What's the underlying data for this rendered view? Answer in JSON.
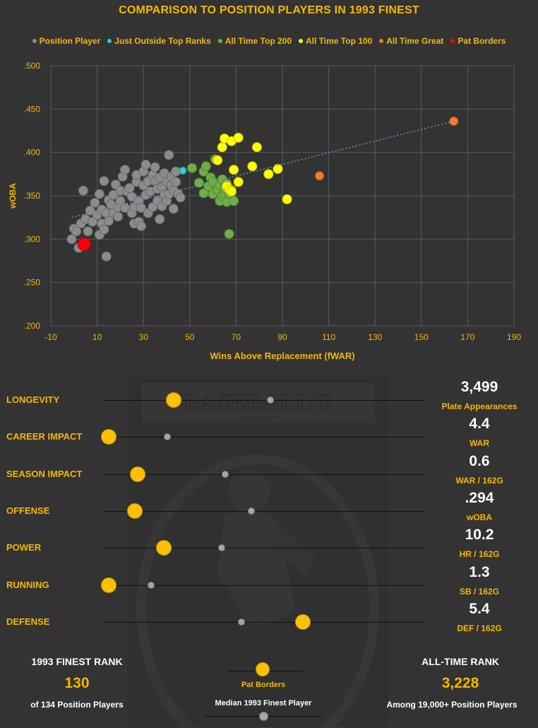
{
  "title": "COMPARISON TO POSITION PLAYERS IN 1993 FINEST",
  "colors": {
    "background": "#333333",
    "accent": "#f5b700",
    "position_player": "#8c8c8c",
    "just_outside": "#33cccc",
    "top200": "#70ad47",
    "top100": "#ffff00",
    "all_time_great": "#ed7d31",
    "pat_borders": "#ff0000"
  },
  "legend": [
    {
      "label": "Position Player",
      "color": "#8c8c8c"
    },
    {
      "label": "Just Outside Top Ranks",
      "color": "#33cccc"
    },
    {
      "label": "All Time Top 200",
      "color": "#70ad47"
    },
    {
      "label": "All Time Top 100",
      "color": "#ffff00"
    },
    {
      "label": "All Time Great",
      "color": "#ed7d31"
    },
    {
      "label": "Pat Borders",
      "color": "#ff0000"
    }
  ],
  "chart_data": {
    "type": "scatter",
    "xlabel": "Wins Above Replacement (fWAR)",
    "ylabel": "wOBA",
    "xlim": [
      -10,
      190
    ],
    "ylim": [
      0.2,
      0.5
    ],
    "x_ticks": [
      -10,
      10,
      30,
      50,
      70,
      90,
      110,
      130,
      150,
      170,
      190
    ],
    "y_ticks": [
      ".200",
      ".250",
      ".300",
      ".350",
      ".400",
      ".450",
      ".500"
    ],
    "grid": true,
    "trendline": {
      "x": [
        -1,
        164
      ],
      "y": [
        0.325,
        0.436
      ]
    },
    "series": [
      {
        "name": "Position Player",
        "color": "#8c8c8c",
        "points": [
          [
            -1,
            0.3
          ],
          [
            0,
            0.312
          ],
          [
            1,
            0.309
          ],
          [
            2,
            0.29
          ],
          [
            3,
            0.318
          ],
          [
            4,
            0.356
          ],
          [
            5,
            0.323
          ],
          [
            6,
            0.309
          ],
          [
            7,
            0.333
          ],
          [
            8,
            0.32
          ],
          [
            9,
            0.342
          ],
          [
            10,
            0.328
          ],
          [
            11,
            0.305
          ],
          [
            11,
            0.352
          ],
          [
            12,
            0.318
          ],
          [
            12,
            0.334
          ],
          [
            13,
            0.311
          ],
          [
            13,
            0.367
          ],
          [
            14,
            0.33
          ],
          [
            14,
            0.28
          ],
          [
            15,
            0.345
          ],
          [
            15,
            0.321
          ],
          [
            16,
            0.34
          ],
          [
            17,
            0.351
          ],
          [
            17,
            0.33
          ],
          [
            18,
            0.363
          ],
          [
            19,
            0.337
          ],
          [
            19,
            0.326
          ],
          [
            20,
            0.344
          ],
          [
            20,
            0.356
          ],
          [
            21,
            0.372
          ],
          [
            22,
            0.336
          ],
          [
            22,
            0.38
          ],
          [
            23,
            0.355
          ],
          [
            24,
            0.359
          ],
          [
            25,
            0.33
          ],
          [
            25,
            0.349
          ],
          [
            26,
            0.318
          ],
          [
            26,
            0.337
          ],
          [
            27,
            0.366
          ],
          [
            27,
            0.374
          ],
          [
            28,
            0.32
          ],
          [
            28,
            0.344
          ],
          [
            29,
            0.315
          ],
          [
            29,
            0.336
          ],
          [
            30,
            0.362
          ],
          [
            30,
            0.378
          ],
          [
            31,
            0.386
          ],
          [
            31,
            0.351
          ],
          [
            32,
            0.33
          ],
          [
            32,
            0.367
          ],
          [
            33,
            0.355
          ],
          [
            34,
            0.337
          ],
          [
            34,
            0.374
          ],
          [
            35,
            0.367
          ],
          [
            35,
            0.383
          ],
          [
            36,
            0.344
          ],
          [
            36,
            0.358
          ],
          [
            37,
            0.323
          ],
          [
            37,
            0.371
          ],
          [
            38,
            0.338
          ],
          [
            38,
            0.36
          ],
          [
            39,
            0.351
          ],
          [
            39,
            0.376
          ],
          [
            40,
            0.344
          ],
          [
            40,
            0.366
          ],
          [
            41,
            0.397
          ],
          [
            41,
            0.352
          ],
          [
            42,
            0.362
          ],
          [
            42,
            0.372
          ],
          [
            43,
            0.335
          ],
          [
            43,
            0.356
          ],
          [
            44,
            0.366
          ],
          [
            44,
            0.378
          ],
          [
            45,
            0.352
          ],
          [
            46,
            0.348
          ]
        ]
      },
      {
        "name": "Just Outside Top Ranks",
        "color": "#33cccc",
        "points": [
          [
            47,
            0.379
          ]
        ]
      },
      {
        "name": "All Time Top 200",
        "color": "#70ad47",
        "points": [
          [
            51,
            0.382
          ],
          [
            54,
            0.365
          ],
          [
            56,
            0.378
          ],
          [
            56,
            0.353
          ],
          [
            57,
            0.384
          ],
          [
            58,
            0.361
          ],
          [
            59,
            0.371
          ],
          [
            60,
            0.352
          ],
          [
            60,
            0.366
          ],
          [
            61,
            0.392
          ],
          [
            62,
            0.357
          ],
          [
            63,
            0.362
          ],
          [
            63,
            0.344
          ],
          [
            64,
            0.35
          ],
          [
            64,
            0.369
          ],
          [
            65,
            0.352
          ],
          [
            65,
            0.359
          ],
          [
            66,
            0.343
          ],
          [
            66,
            0.364
          ],
          [
            67,
            0.306
          ],
          [
            67,
            0.352
          ],
          [
            68,
            0.357
          ],
          [
            69,
            0.344
          ]
        ]
      },
      {
        "name": "All Time Top 100",
        "color": "#ffff00",
        "points": [
          [
            62,
            0.391
          ],
          [
            64,
            0.406
          ],
          [
            65,
            0.416
          ],
          [
            66,
            0.361
          ],
          [
            67,
            0.357
          ],
          [
            68,
            0.413
          ],
          [
            68,
            0.355
          ],
          [
            69,
            0.38
          ],
          [
            71,
            0.417
          ],
          [
            71,
            0.366
          ],
          [
            77,
            0.384
          ],
          [
            79,
            0.406
          ],
          [
            84,
            0.375
          ],
          [
            88,
            0.381
          ],
          [
            92,
            0.346
          ]
        ]
      },
      {
        "name": "All Time Great",
        "color": "#ed7d31",
        "points": [
          [
            106,
            0.373
          ],
          [
            164,
            0.436
          ]
        ]
      },
      {
        "name": "Pat Borders",
        "color": "#ff0000",
        "points": [
          [
            4.4,
            0.294
          ]
        ]
      }
    ]
  },
  "metrics": [
    {
      "label": "LONGEVITY",
      "player_pct": 0.22,
      "median_pct": 0.52,
      "value": "3,499",
      "unit": "Plate Appearances"
    },
    {
      "label": "CAREER IMPACT",
      "player_pct": 0.02,
      "median_pct": 0.2,
      "value": "4.4",
      "unit": "WAR"
    },
    {
      "label": "SEASON IMPACT",
      "player_pct": 0.11,
      "median_pct": 0.38,
      "value": "0.6",
      "unit": "WAR / 162G"
    },
    {
      "label": "OFFENSE",
      "player_pct": 0.1,
      "median_pct": 0.46,
      "value": ".294",
      "unit": "wOBA"
    },
    {
      "label": "POWER",
      "player_pct": 0.19,
      "median_pct": 0.37,
      "value": "10.2",
      "unit": "HR / 162G"
    },
    {
      "label": "RUNNING",
      "player_pct": 0.02,
      "median_pct": 0.15,
      "value": "1.3",
      "unit": "SB / 162G"
    },
    {
      "label": "DEFENSE",
      "player_pct": 0.62,
      "median_pct": 0.43,
      "value": "5.4",
      "unit": "DEF / 162G"
    }
  ],
  "ranks": {
    "finest_head": "1993 FINEST RANK",
    "finest_value": "130",
    "finest_sub": "of 134 Position Players",
    "alltime_head": "ALL-TIME RANK",
    "alltime_value": "3,228",
    "alltime_sub": "Among 19,000+ Position Players",
    "key_player": "Pat Borders",
    "key_median": "Median 1993 Finest Player"
  }
}
